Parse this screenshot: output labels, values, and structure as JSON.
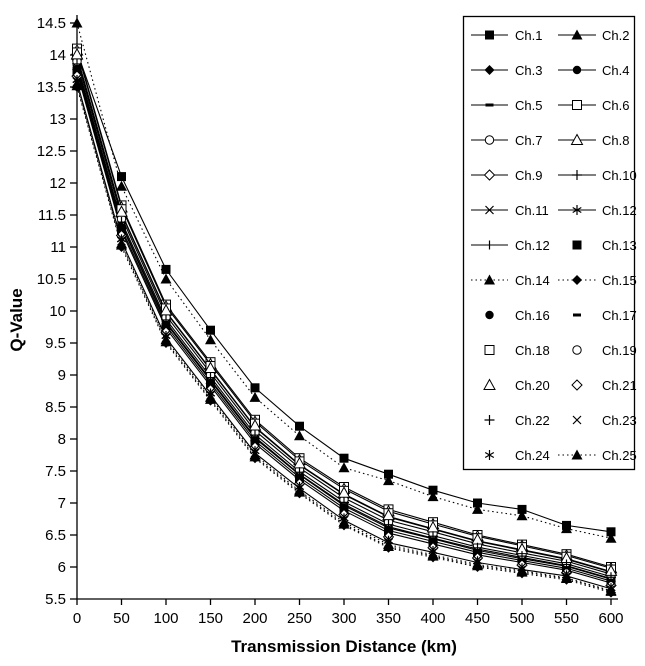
{
  "chart_data": {
    "type": "line",
    "title": "",
    "xlabel": "Transmission Distance (km)",
    "ylabel": "Q-Value",
    "xlim": [
      0,
      600
    ],
    "ylim": [
      5.5,
      14.5
    ],
    "grid": false,
    "legend_position": "top-right-box",
    "colors": {
      "foreground": "#000000",
      "background": "#ffffff"
    },
    "x": [
      0,
      50,
      100,
      150,
      200,
      250,
      300,
      350,
      400,
      450,
      500,
      550,
      600
    ],
    "x_tick_labels": [
      "0",
      "50",
      "100",
      "150",
      "200",
      "250",
      "300",
      "350",
      "400",
      "450",
      "500",
      "550",
      "600"
    ],
    "y_tick_values": [
      5.5,
      6,
      6.5,
      7,
      7.5,
      8,
      8.5,
      9,
      9.5,
      10,
      10.5,
      11,
      11.5,
      12,
      12.5,
      13,
      13.5,
      14,
      14.5
    ],
    "y_tick_labels": [
      "5.5",
      "6",
      "6.5",
      "7",
      "7.5",
      "8",
      "8.5",
      "9",
      "9.5",
      "10",
      "10.5",
      "11",
      "11.5",
      "12",
      "12.5",
      "13",
      "13.5",
      "14",
      "14.5"
    ],
    "series": [
      {
        "name": "Ch.1",
        "marker": "filled-square",
        "line": "solid",
        "values": [
          14.05,
          12.1,
          10.65,
          9.7,
          8.8,
          8.2,
          7.7,
          7.45,
          7.2,
          7.0,
          6.9,
          6.65,
          6.55
        ]
      },
      {
        "name": "Ch.2",
        "marker": "filled-triangle",
        "line": "dotted",
        "legend_line": "solid",
        "values": [
          14.5,
          11.95,
          10.5,
          9.55,
          8.65,
          8.05,
          7.55,
          7.35,
          7.1,
          6.9,
          6.8,
          6.6,
          6.45
        ]
      },
      {
        "name": "Ch.3",
        "marker": "filled-diamond",
        "line": "solid",
        "values": [
          13.77,
          11.29,
          9.77,
          8.87,
          7.97,
          7.4,
          6.92,
          6.57,
          6.4,
          6.23,
          6.1,
          5.98,
          5.78
        ]
      },
      {
        "name": "Ch.4",
        "marker": "filled-circle",
        "line": "solid",
        "values": [
          13.73,
          11.25,
          9.73,
          8.83,
          7.93,
          7.36,
          6.88,
          6.53,
          6.36,
          6.19,
          6.07,
          5.95,
          5.75
        ]
      },
      {
        "name": "Ch.5",
        "marker": "dash",
        "line": "solid",
        "values": [
          13.81,
          11.34,
          9.81,
          8.91,
          8.01,
          7.44,
          6.96,
          6.61,
          6.44,
          6.26,
          6.13,
          6.01,
          5.81
        ]
      },
      {
        "name": "Ch.6",
        "marker": "open-square",
        "line": "solid",
        "values": [
          14.1,
          11.65,
          10.1,
          9.2,
          8.3,
          7.7,
          7.25,
          6.9,
          6.7,
          6.5,
          6.35,
          6.2,
          6.0
        ]
      },
      {
        "name": "Ch.7",
        "marker": "open-circle",
        "line": "solid",
        "values": [
          13.99,
          11.53,
          9.99,
          9.09,
          8.19,
          7.6,
          7.14,
          6.79,
          6.6,
          6.41,
          6.27,
          6.13,
          5.93
        ]
      },
      {
        "name": "Ch.8",
        "marker": "open-triangle",
        "line": "solid",
        "values": [
          14.07,
          11.62,
          10.07,
          9.17,
          8.27,
          7.67,
          7.22,
          6.87,
          6.67,
          6.48,
          6.33,
          6.18,
          5.98
        ]
      },
      {
        "name": "Ch.9",
        "marker": "open-diamond",
        "line": "solid",
        "values": [
          13.93,
          11.47,
          9.93,
          9.03,
          8.13,
          7.55,
          7.08,
          6.73,
          6.55,
          6.36,
          6.22,
          6.09,
          5.89
        ]
      },
      {
        "name": "Ch.10",
        "marker": "plus",
        "line": "solid",
        "values": [
          13.98,
          11.52,
          9.98,
          9.08,
          8.18,
          7.59,
          7.13,
          6.78,
          6.59,
          6.4,
          6.26,
          6.12,
          5.92
        ]
      },
      {
        "name": "Ch.11",
        "marker": "x",
        "line": "solid",
        "values": [
          13.58,
          11.09,
          9.58,
          8.68,
          7.78,
          7.23,
          6.73,
          6.38,
          6.23,
          6.07,
          5.96,
          5.86,
          5.66
        ]
      },
      {
        "name": "Ch.12",
        "marker": "asterisk",
        "line": "solid",
        "values": [
          13.87,
          11.4,
          9.87,
          8.97,
          8.07,
          7.49,
          7.02,
          6.67,
          6.49,
          6.31,
          6.18,
          6.05,
          5.85
        ]
      },
      {
        "name": "Ch.12",
        "marker": "vbar",
        "line": "solid",
        "values": [
          13.83,
          11.36,
          9.83,
          8.93,
          8.03,
          7.45,
          6.98,
          6.63,
          6.45,
          6.28,
          6.15,
          6.02,
          5.82
        ]
      },
      {
        "name": "Ch.13",
        "marker": "filled-square",
        "line": "none",
        "values": [
          13.75,
          11.27,
          9.75,
          8.85,
          7.95,
          7.38,
          6.9,
          6.55,
          6.38,
          6.21,
          6.09,
          5.97,
          5.77
        ]
      },
      {
        "name": "Ch.14",
        "marker": "filled-triangle",
        "line": "dotted",
        "values": [
          13.55,
          11.05,
          9.55,
          8.65,
          7.75,
          7.19,
          6.7,
          6.35,
          6.19,
          6.04,
          5.94,
          5.83,
          5.63
        ]
      },
      {
        "name": "Ch.15",
        "marker": "filled-diamond",
        "line": "dotted",
        "values": [
          13.5,
          11.0,
          9.5,
          8.6,
          7.7,
          7.15,
          6.65,
          6.3,
          6.15,
          6.0,
          5.9,
          5.8,
          5.6
        ]
      },
      {
        "name": "Ch.16",
        "marker": "filled-circle",
        "line": "none",
        "values": [
          13.7,
          11.22,
          9.7,
          8.8,
          7.9,
          7.34,
          6.85,
          6.5,
          6.34,
          6.17,
          6.05,
          5.94,
          5.74
        ]
      },
      {
        "name": "Ch.17",
        "marker": "dash",
        "line": "none",
        "values": [
          13.79,
          11.31,
          9.79,
          8.89,
          7.99,
          7.41,
          6.94,
          6.59,
          6.41,
          6.24,
          6.12,
          5.99,
          5.79
        ]
      },
      {
        "name": "Ch.18",
        "marker": "open-square",
        "line": "none",
        "values": [
          14.04,
          11.59,
          10.04,
          9.14,
          8.24,
          7.65,
          7.19,
          6.84,
          6.65,
          6.45,
          6.31,
          6.16,
          5.96
        ]
      },
      {
        "name": "Ch.19",
        "marker": "open-circle",
        "line": "none",
        "values": [
          13.9,
          11.44,
          9.9,
          9.0,
          8.1,
          7.52,
          7.05,
          6.7,
          6.52,
          6.34,
          6.2,
          6.07,
          5.87
        ]
      },
      {
        "name": "Ch.20",
        "marker": "open-triangle",
        "line": "none",
        "values": [
          14.01,
          11.55,
          10.01,
          9.11,
          8.21,
          7.62,
          7.16,
          6.81,
          6.62,
          6.43,
          6.28,
          6.14,
          5.94
        ]
      },
      {
        "name": "Ch.21",
        "marker": "open-diamond",
        "line": "none",
        "values": [
          13.67,
          11.18,
          9.67,
          8.77,
          7.87,
          7.3,
          6.82,
          6.47,
          6.3,
          6.14,
          6.03,
          5.91,
          5.71
        ]
      },
      {
        "name": "Ch.22",
        "marker": "plus",
        "line": "none",
        "values": [
          13.86,
          11.39,
          9.86,
          8.96,
          8.06,
          7.48,
          7.01,
          6.66,
          6.48,
          6.3,
          6.17,
          6.04,
          5.84
        ]
      },
      {
        "name": "Ch.23",
        "marker": "x",
        "line": "none",
        "values": [
          13.63,
          11.14,
          9.63,
          8.73,
          7.83,
          7.27,
          6.78,
          6.43,
          6.27,
          6.11,
          6.0,
          5.89,
          5.69
        ]
      },
      {
        "name": "Ch.24",
        "marker": "asterisk",
        "line": "none",
        "values": [
          13.61,
          11.12,
          9.61,
          8.71,
          7.81,
          7.25,
          6.76,
          6.41,
          6.25,
          6.09,
          5.98,
          5.87,
          5.67
        ]
      },
      {
        "name": "Ch.25",
        "marker": "filled-triangle",
        "line": "dotted",
        "values": [
          13.52,
          11.03,
          9.52,
          8.62,
          7.72,
          7.17,
          6.67,
          6.32,
          6.17,
          6.02,
          5.92,
          5.82,
          5.62
        ]
      }
    ]
  }
}
